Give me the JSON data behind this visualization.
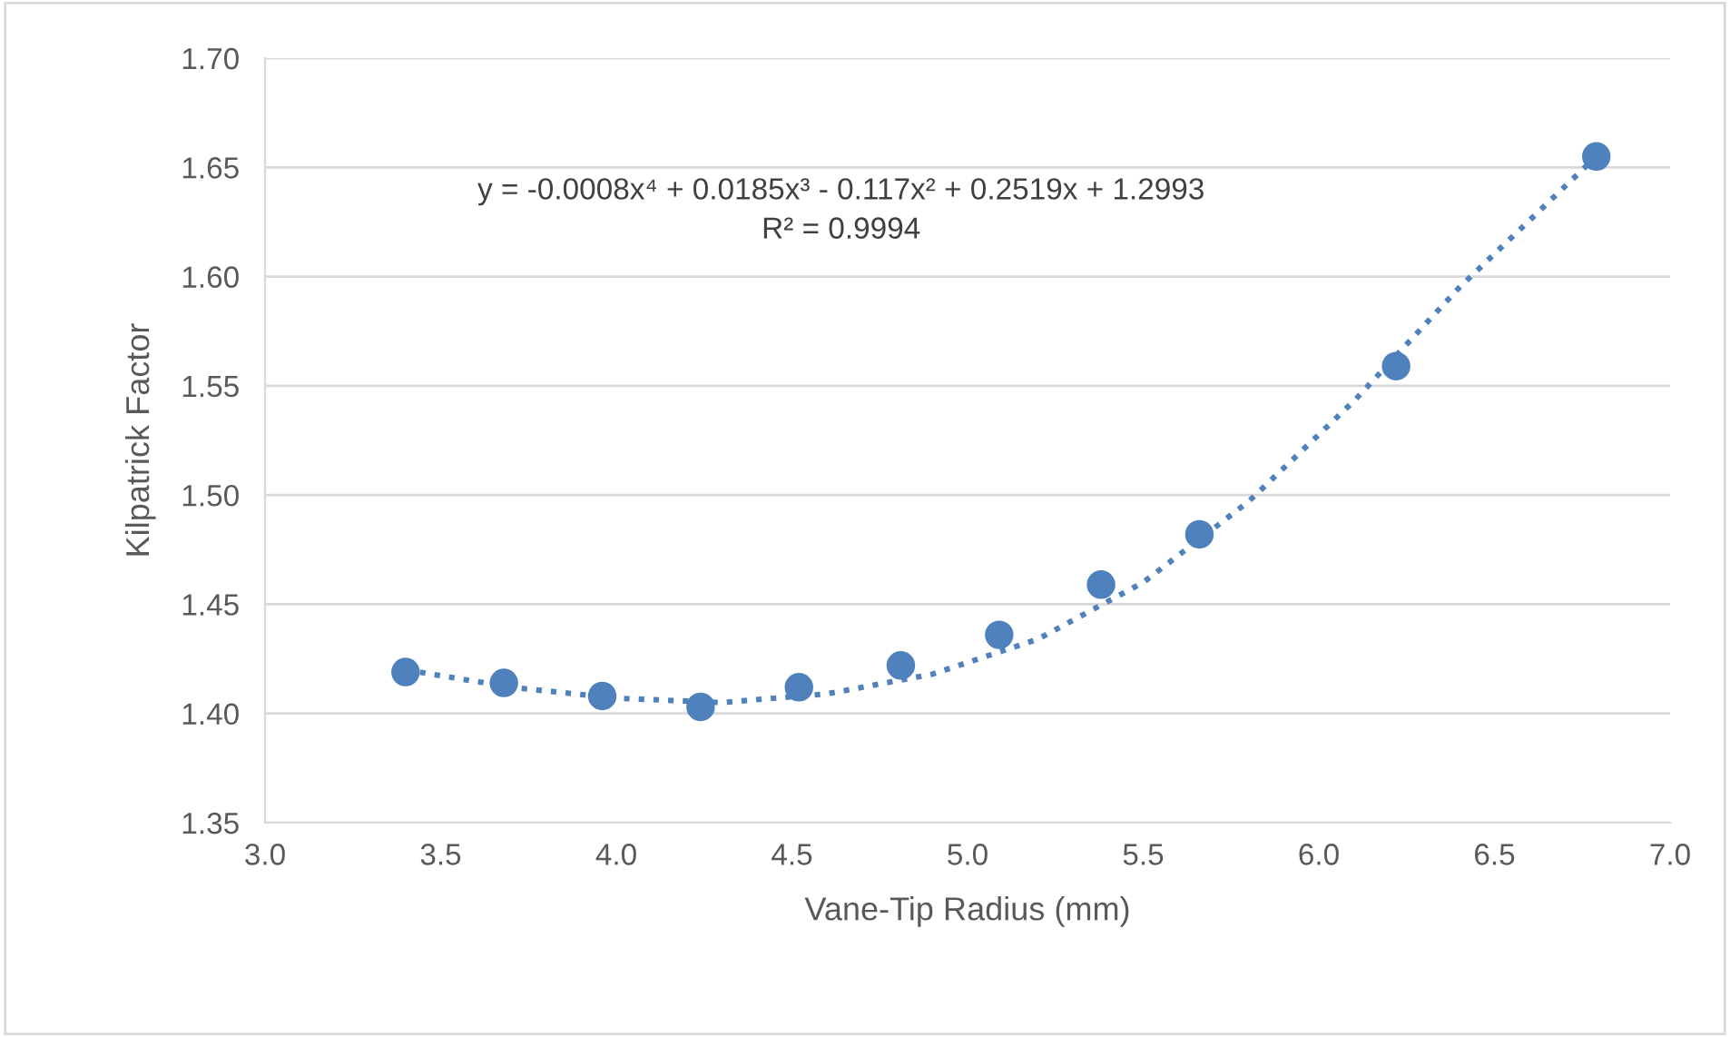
{
  "chart_data": {
    "type": "scatter",
    "xlabel": "Vane-Tip Radius (mm)",
    "ylabel": "Kilpatrick Factor",
    "annotations": [
      "y = -0.0008x⁴ + 0.0185x³ - 0.117x² + 0.2519x + 1.2993\nR² = 0.9994"
    ],
    "series": [
      {
        "color": "#4f81bd",
        "marker": "circle",
        "x": [
          3.4,
          3.68,
          3.96,
          4.24,
          4.52,
          4.81,
          5.09,
          5.38,
          5.66,
          6.22,
          6.79
        ],
        "values": [
          1.419,
          1.414,
          1.408,
          1.403,
          1.412,
          1.422,
          1.436,
          1.459,
          1.482,
          1.559,
          1.655
        ]
      },
      {
        "type": "line",
        "color": "#4f81bd",
        "line_style": "dotted",
        "marker": "none",
        "x": [
          3.4,
          3.7,
          4.0,
          4.3,
          4.6,
          4.9,
          5.2,
          5.5,
          5.8,
          6.1,
          6.4,
          6.79
        ],
        "values": [
          1.42,
          1.412,
          1.407,
          1.405,
          1.409,
          1.418,
          1.434,
          1.46,
          1.497,
          1.543,
          1.595,
          1.655
        ]
      }
    ],
    "xlim": [
      3.0,
      7.0
    ],
    "xticks": [
      {
        "value": 3.0,
        "label": "3.0"
      },
      {
        "value": 3.5,
        "label": "3.5"
      },
      {
        "value": 4.0,
        "label": "4.0"
      },
      {
        "value": 4.5,
        "label": "4.5"
      },
      {
        "value": 5.0,
        "label": "5.0"
      },
      {
        "value": 5.5,
        "label": "5.5"
      },
      {
        "value": 6.0,
        "label": "6.0"
      },
      {
        "value": 6.5,
        "label": "6.5"
      },
      {
        "value": 7.0,
        "label": "7.0"
      }
    ],
    "ylim": [
      1.35,
      1.7
    ],
    "yticks": [
      {
        "value": 1.35,
        "label": "1.35"
      },
      {
        "value": 1.4,
        "label": "1.40"
      },
      {
        "value": 1.45,
        "label": "1.45"
      },
      {
        "value": 1.5,
        "label": "1.50"
      },
      {
        "value": 1.55,
        "label": "1.55"
      },
      {
        "value": 1.6,
        "label": "1.60"
      },
      {
        "value": 1.65,
        "label": "1.65"
      },
      {
        "value": 1.7,
        "label": "1.70"
      }
    ],
    "grid": "y",
    "legend": false
  }
}
